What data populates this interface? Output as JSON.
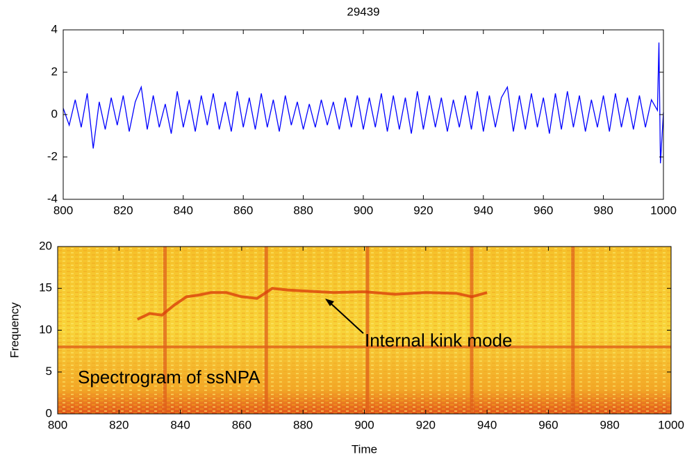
{
  "chart_data": [
    {
      "type": "line",
      "title": "29439",
      "x": [
        800,
        802,
        804,
        806,
        808,
        810,
        812,
        814,
        816,
        818,
        820,
        822,
        824,
        826,
        828,
        830,
        832,
        834,
        836,
        838,
        840,
        842,
        844,
        846,
        848,
        850,
        852,
        854,
        856,
        858,
        860,
        862,
        864,
        866,
        868,
        870,
        872,
        874,
        876,
        878,
        880,
        882,
        884,
        886,
        888,
        890,
        892,
        894,
        896,
        898,
        900,
        902,
        904,
        906,
        908,
        910,
        912,
        914,
        916,
        918,
        920,
        922,
        924,
        926,
        928,
        930,
        932,
        934,
        936,
        938,
        940,
        942,
        944,
        946,
        948,
        950,
        952,
        954,
        956,
        958,
        960,
        962,
        964,
        966,
        968,
        970,
        972,
        974,
        976,
        978,
        980,
        982,
        984,
        986,
        988,
        990,
        992,
        994,
        996,
        998,
        998.5,
        999,
        1000
      ],
      "series": [
        {
          "color": "#0000ff",
          "values": [
            0.3,
            -0.5,
            0.7,
            -0.6,
            1.0,
            -1.6,
            0.6,
            -0.7,
            0.8,
            -0.5,
            0.9,
            -0.8,
            0.6,
            1.3,
            -0.7,
            0.9,
            -0.6,
            0.5,
            -0.9,
            1.1,
            -0.6,
            0.7,
            -0.8,
            0.9,
            -0.5,
            1.0,
            -0.7,
            0.6,
            -0.8,
            1.1,
            -0.6,
            0.8,
            -0.7,
            1.0,
            -0.6,
            0.7,
            -0.8,
            0.9,
            -0.5,
            0.6,
            -0.7,
            0.5,
            -0.6,
            0.7,
            -0.5,
            0.6,
            -0.7,
            0.8,
            -0.6,
            0.9,
            -0.7,
            0.8,
            -0.6,
            1.0,
            -0.8,
            0.9,
            -0.7,
            0.8,
            -0.9,
            1.1,
            -0.7,
            0.9,
            -0.6,
            0.8,
            -0.8,
            0.7,
            -0.6,
            0.9,
            -0.7,
            1.1,
            -0.8,
            0.9,
            -0.6,
            0.8,
            1.3,
            -0.8,
            0.9,
            -0.7,
            1.0,
            -0.6,
            0.8,
            -0.9,
            1.0,
            -0.7,
            1.1,
            -0.6,
            0.9,
            -0.8,
            0.7,
            -0.6,
            0.9,
            -0.8,
            1.0,
            -0.6,
            0.8,
            -0.7,
            0.9,
            -0.6,
            0.7,
            0.2,
            3.4,
            -2.3,
            0.1
          ]
        }
      ],
      "xlim": [
        800,
        1000
      ],
      "ylim": [
        -4,
        4
      ],
      "xticks": [
        800,
        820,
        840,
        860,
        880,
        900,
        920,
        940,
        960,
        980,
        1000
      ],
      "yticks": [
        -4,
        -2,
        0,
        2,
        4
      ]
    },
    {
      "type": "spectrogram",
      "xlabel": "Time",
      "ylabel": "Frequency",
      "xlim": [
        800,
        1000
      ],
      "ylim": [
        0,
        20
      ],
      "xticks": [
        800,
        820,
        840,
        860,
        880,
        900,
        920,
        940,
        960,
        980,
        1000
      ],
      "yticks": [
        0,
        5,
        10,
        15,
        20
      ],
      "series": [
        {
          "color": "#d9400a",
          "x": [
            826,
            830,
            834,
            838,
            842,
            846,
            850,
            855,
            860,
            865,
            870,
            875,
            880,
            890,
            900,
            910,
            920,
            930,
            935,
            940
          ],
          "values": [
            11.3,
            12,
            11.8,
            13,
            14,
            14.2,
            14.5,
            14.5,
            14,
            13.8,
            15,
            14.8,
            14.7,
            14.5,
            14.6,
            14.3,
            14.5,
            14.4,
            14,
            14.5
          ]
        }
      ],
      "hlines": [
        8
      ],
      "vlines": [
        835,
        868,
        901,
        935,
        968
      ],
      "annotations": [
        "Internal kink mode",
        "Spectrogram of ssNPA"
      ]
    }
  ]
}
